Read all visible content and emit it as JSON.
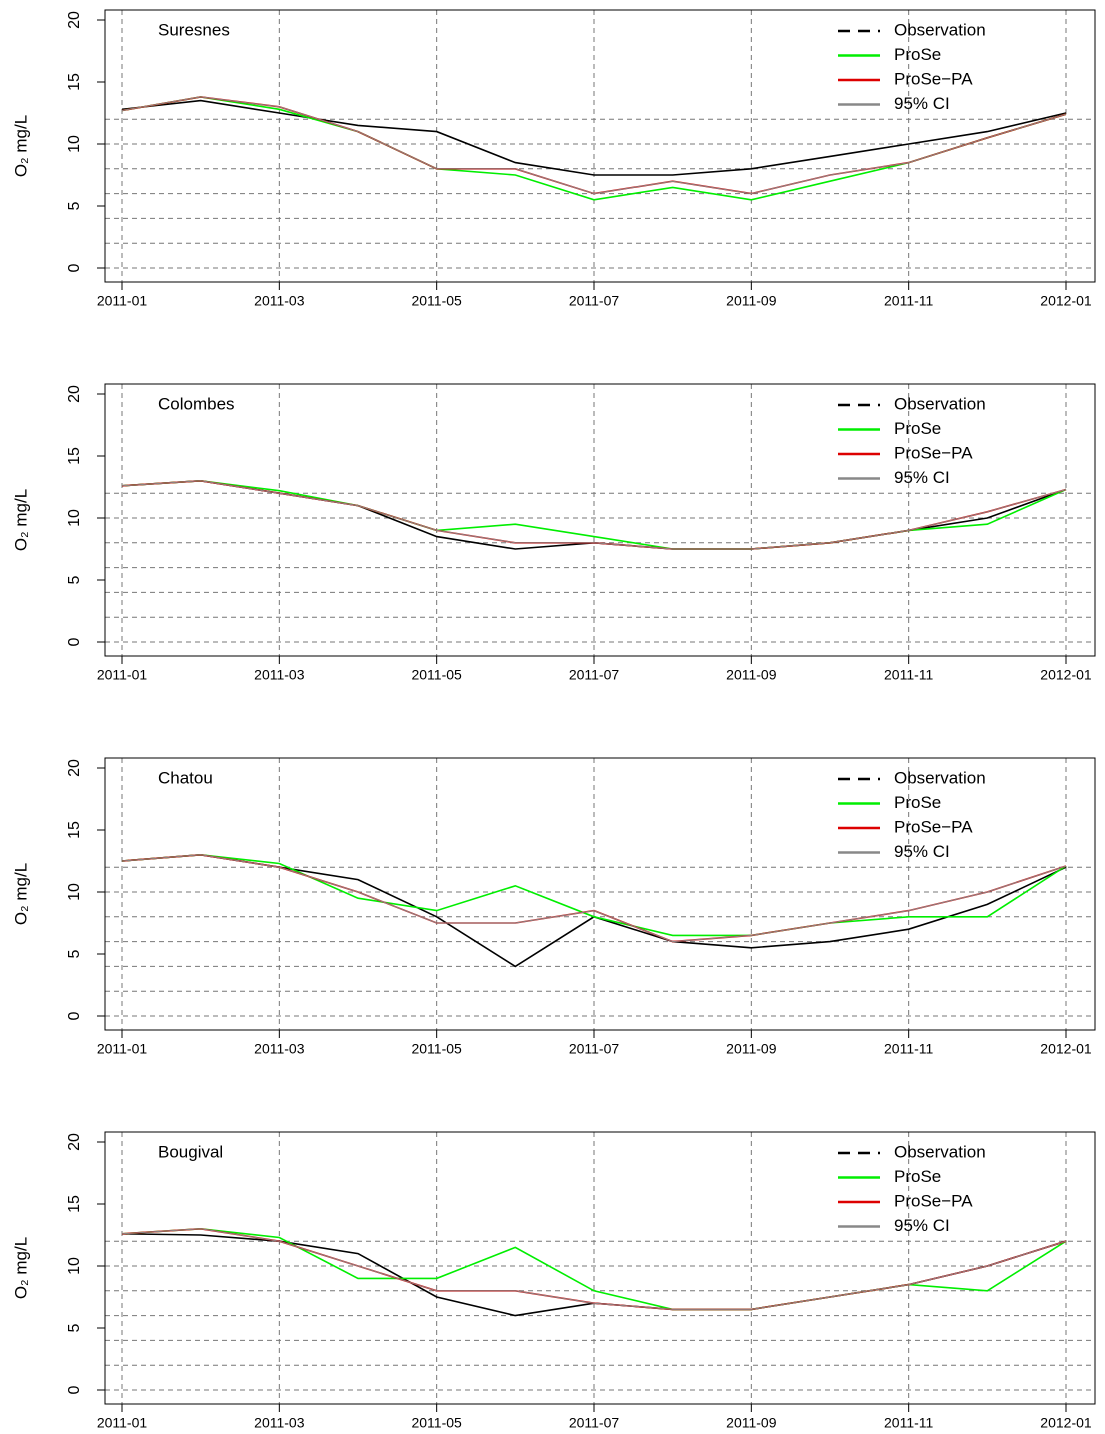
{
  "chart_data": [
    {
      "type": "line",
      "title": "Suresnes",
      "ylabel": "O₂ mg/L",
      "x": [
        "2011-01",
        "2011-02",
        "2011-03",
        "2011-04",
        "2011-05",
        "2011-06",
        "2011-07",
        "2011-08",
        "2011-09",
        "2011-10",
        "2011-11",
        "2011-12",
        "2012-01"
      ],
      "xlim": [
        "2011-01",
        "2012-01"
      ],
      "xticks": [
        "2011-01",
        "2011-03",
        "2011-05",
        "2011-07",
        "2011-09",
        "2011-11",
        "2012-01"
      ],
      "ylim": [
        0,
        20
      ],
      "yticks": [
        0,
        5,
        10,
        15,
        20
      ],
      "hgrid": [
        0,
        2,
        4,
        6,
        8,
        10,
        12
      ],
      "grid": true,
      "legend": "topright",
      "series": [
        {
          "name": "Observation",
          "color": "#000000",
          "values": [
            12.8,
            13.5,
            12.5,
            11.5,
            11,
            8.5,
            7.5,
            7.5,
            8,
            9,
            10,
            11,
            12.5
          ]
        },
        {
          "name": "ProSe",
          "color": "#00ee00",
          "values": [
            12.7,
            13.8,
            12.8,
            11,
            8,
            7.5,
            5.5,
            6.5,
            5.5,
            7,
            8.5,
            10.5,
            12.4
          ]
        },
        {
          "name": "ProSe−PA",
          "color": "#dd0000",
          "values": [
            12.7,
            13.8,
            13,
            11,
            8,
            8,
            6,
            7,
            6,
            7.5,
            8.5,
            10.5,
            12.4
          ]
        },
        {
          "name": "95% CI",
          "color": "#888888",
          "values": [
            12.7,
            13.8,
            13,
            11,
            8,
            8,
            6,
            7,
            6,
            7.5,
            8.5,
            10.5,
            12.4
          ]
        }
      ]
    },
    {
      "type": "line",
      "title": "Colombes",
      "ylabel": "O₂ mg/L",
      "x": [
        "2011-01",
        "2011-02",
        "2011-03",
        "2011-04",
        "2011-05",
        "2011-06",
        "2011-07",
        "2011-08",
        "2011-09",
        "2011-10",
        "2011-11",
        "2011-12",
        "2012-01"
      ],
      "xlim": [
        "2011-01",
        "2012-01"
      ],
      "xticks": [
        "2011-01",
        "2011-03",
        "2011-05",
        "2011-07",
        "2011-09",
        "2011-11",
        "2012-01"
      ],
      "ylim": [
        0,
        20
      ],
      "yticks": [
        0,
        5,
        10,
        15,
        20
      ],
      "hgrid": [
        0,
        2,
        4,
        6,
        8,
        10,
        12
      ],
      "grid": true,
      "legend": "topright",
      "series": [
        {
          "name": "Observation",
          "color": "#000000",
          "values": [
            12.6,
            13,
            12,
            11,
            8.5,
            7.5,
            8,
            7.5,
            7.5,
            8,
            9,
            10,
            12.3
          ]
        },
        {
          "name": "ProSe",
          "color": "#00ee00",
          "values": [
            12.6,
            13,
            12.2,
            11,
            9,
            9.5,
            8.5,
            7.5,
            7.5,
            8,
            9,
            9.5,
            12.3
          ]
        },
        {
          "name": "ProSe−PA",
          "color": "#dd0000",
          "values": [
            12.6,
            13,
            12,
            11,
            9,
            8,
            8,
            7.5,
            7.5,
            8,
            9,
            10.5,
            12.3
          ]
        },
        {
          "name": "95% CI",
          "color": "#888888",
          "values": [
            12.6,
            13,
            12,
            11,
            9,
            8,
            8,
            7.5,
            7.5,
            8,
            9,
            10.5,
            12.3
          ]
        }
      ]
    },
    {
      "type": "line",
      "title": "Chatou",
      "ylabel": "O₂ mg/L",
      "x": [
        "2011-01",
        "2011-02",
        "2011-03",
        "2011-04",
        "2011-05",
        "2011-06",
        "2011-07",
        "2011-08",
        "2011-09",
        "2011-10",
        "2011-11",
        "2011-12",
        "2012-01"
      ],
      "xlim": [
        "2011-01",
        "2012-01"
      ],
      "xticks": [
        "2011-01",
        "2011-03",
        "2011-05",
        "2011-07",
        "2011-09",
        "2011-11",
        "2012-01"
      ],
      "ylim": [
        0,
        20
      ],
      "yticks": [
        0,
        5,
        10,
        15,
        20
      ],
      "hgrid": [
        0,
        2,
        4,
        6,
        8,
        10,
        12
      ],
      "grid": true,
      "legend": "topright",
      "series": [
        {
          "name": "Observation",
          "color": "#000000",
          "values": [
            12.5,
            13,
            12,
            11,
            8,
            4,
            8,
            6,
            5.5,
            6,
            7,
            9,
            12
          ]
        },
        {
          "name": "ProSe",
          "color": "#00ee00",
          "values": [
            12.5,
            13,
            12.3,
            9.5,
            8.5,
            10.5,
            8,
            6.5,
            6.5,
            7.5,
            8,
            8,
            12.1
          ]
        },
        {
          "name": "ProSe−PA",
          "color": "#dd0000",
          "values": [
            12.5,
            13,
            12,
            10,
            7.5,
            7.5,
            8.5,
            6,
            6.5,
            7.5,
            8.5,
            10,
            12.1
          ]
        },
        {
          "name": "95% CI",
          "color": "#888888",
          "values": [
            12.5,
            13,
            12,
            10,
            7.5,
            7.5,
            8.5,
            6,
            6.5,
            7.5,
            8.5,
            10,
            12.1
          ]
        }
      ]
    },
    {
      "type": "line",
      "title": "Bougival",
      "ylabel": "O₂ mg/L",
      "x": [
        "2011-01",
        "2011-02",
        "2011-03",
        "2011-04",
        "2011-05",
        "2011-06",
        "2011-07",
        "2011-08",
        "2011-09",
        "2011-10",
        "2011-11",
        "2011-12",
        "2012-01"
      ],
      "xlim": [
        "2011-01",
        "2012-01"
      ],
      "xticks": [
        "2011-01",
        "2011-03",
        "2011-05",
        "2011-07",
        "2011-09",
        "2011-11",
        "2012-01"
      ],
      "ylim": [
        0,
        20
      ],
      "yticks": [
        0,
        5,
        10,
        15,
        20
      ],
      "hgrid": [
        0,
        2,
        4,
        6,
        8,
        10,
        12
      ],
      "grid": true,
      "legend": "topright",
      "series": [
        {
          "name": "Observation",
          "color": "#000000",
          "values": [
            12.6,
            12.5,
            12,
            11,
            7.5,
            6,
            7,
            6.5,
            6.5,
            7.5,
            8.5,
            10,
            12
          ]
        },
        {
          "name": "ProSe",
          "color": "#00ee00",
          "values": [
            12.6,
            13,
            12.3,
            9,
            9,
            11.5,
            8,
            6.5,
            6.5,
            7.5,
            8.5,
            8,
            12
          ]
        },
        {
          "name": "ProSe−PA",
          "color": "#dd0000",
          "values": [
            12.6,
            13,
            12,
            10,
            8,
            8,
            7,
            6.5,
            6.5,
            7.5,
            8.5,
            10,
            12
          ]
        },
        {
          "name": "95% CI",
          "color": "#888888",
          "values": [
            12.6,
            13,
            12,
            10,
            8,
            8,
            7,
            6.5,
            6.5,
            7.5,
            8.5,
            10,
            12
          ]
        }
      ]
    }
  ]
}
